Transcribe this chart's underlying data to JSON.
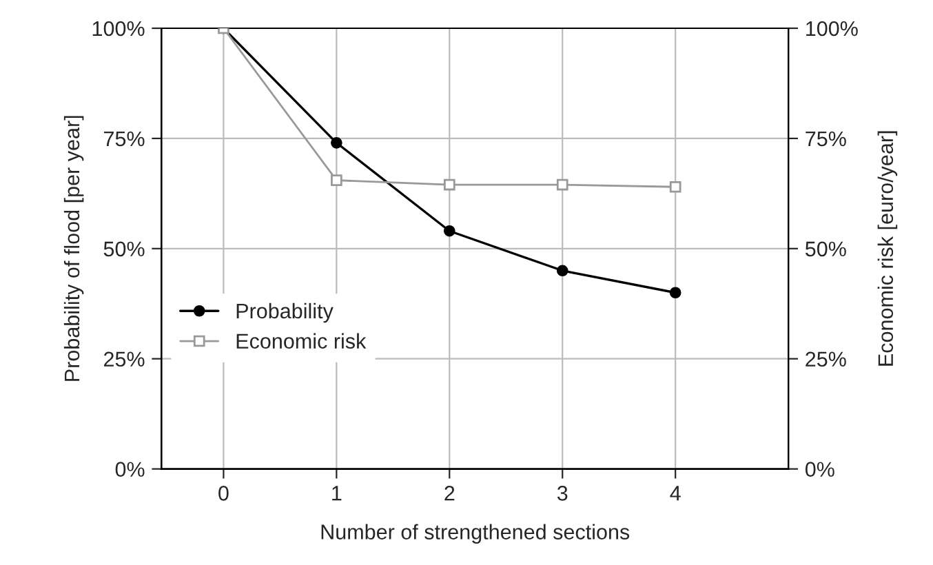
{
  "chart_data": {
    "type": "line",
    "xlabel": "Number of strengthened sections",
    "ylabel": "Probability of flood [per year]",
    "y2label": "Economic risk [euro/year]",
    "x": [
      0,
      1,
      2,
      3,
      4
    ],
    "xlim": [
      -0.55,
      5
    ],
    "xticks": [
      0,
      1,
      2,
      3,
      4
    ],
    "ylim": [
      0,
      100
    ],
    "yticks": [
      {
        "value": 0,
        "label": "0%"
      },
      {
        "value": 25,
        "label": "25%"
      },
      {
        "value": 50,
        "label": "50%"
      },
      {
        "value": 75,
        "label": "75%"
      },
      {
        "value": 100,
        "label": "100%"
      }
    ],
    "y2lim": [
      0,
      100
    ],
    "y2ticks": [
      {
        "value": 0,
        "label": "0%"
      },
      {
        "value": 25,
        "label": "25%"
      },
      {
        "value": 50,
        "label": "50%"
      },
      {
        "value": 75,
        "label": "75%"
      },
      {
        "value": 100,
        "label": "100%"
      }
    ],
    "grid": true,
    "legend": "left",
    "series": [
      {
        "name": "Probability",
        "color": "#000000",
        "marker": "circle",
        "values": [
          100,
          74,
          54,
          45,
          40
        ]
      },
      {
        "name": "Economic risk",
        "color": "#999999",
        "marker": "square",
        "axis": "y2",
        "values": [
          100,
          65.5,
          64.5,
          64.5,
          64
        ]
      }
    ]
  }
}
